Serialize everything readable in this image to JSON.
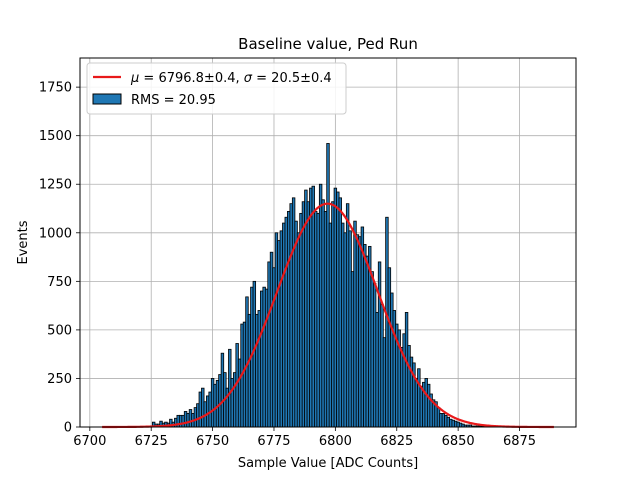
{
  "chart_data": {
    "type": "bar",
    "title": "Baseline value, Ped Run",
    "xlabel": "Sample Value [ADC Counts]",
    "ylabel": "Events",
    "xlim": [
      6696,
      6898
    ],
    "ylim": [
      0,
      1900
    ],
    "xticks": [
      6700,
      6725,
      6750,
      6775,
      6800,
      6825,
      6850,
      6875
    ],
    "yticks": [
      0,
      250,
      500,
      750,
      1000,
      1250,
      1500,
      1750
    ],
    "grid": true,
    "legend_position": "top-left",
    "colors": {
      "bars": "#1f77b4",
      "bar_edge": "#000000",
      "fit": "#e8191a"
    },
    "series": [
      {
        "name": "RMS = 20.95",
        "kind": "histogram",
        "bin_width": 1.05,
        "x": [
          6726,
          6727,
          6728,
          6729,
          6730,
          6731,
          6732,
          6733,
          6734,
          6735,
          6736,
          6737,
          6738,
          6739,
          6740,
          6741,
          6742,
          6743,
          6744,
          6745,
          6746,
          6747,
          6748,
          6749,
          6750,
          6751,
          6752,
          6753,
          6754,
          6755,
          6756,
          6757,
          6758,
          6759,
          6760,
          6761,
          6762,
          6763,
          6764,
          6765,
          6766,
          6767,
          6768,
          6769,
          6770,
          6771,
          6772,
          6773,
          6774,
          6775,
          6776,
          6777,
          6778,
          6779,
          6780,
          6781,
          6782,
          6783,
          6784,
          6785,
          6786,
          6787,
          6788,
          6789,
          6790,
          6791,
          6792,
          6793,
          6794,
          6795,
          6796,
          6797,
          6798,
          6799,
          6800,
          6801,
          6802,
          6803,
          6804,
          6805,
          6806,
          6807,
          6808,
          6809,
          6810,
          6811,
          6812,
          6813,
          6814,
          6815,
          6816,
          6817,
          6818,
          6819,
          6820,
          6821,
          6822,
          6823,
          6824,
          6825,
          6826,
          6827,
          6828,
          6829,
          6830,
          6831,
          6832,
          6833,
          6834,
          6835,
          6836,
          6837,
          6838,
          6839,
          6840,
          6841,
          6842,
          6843,
          6844,
          6845,
          6846,
          6847,
          6848,
          6849,
          6850,
          6851,
          6852,
          6853,
          6854,
          6855,
          6856,
          6857,
          6858,
          6859,
          6860,
          6861
        ],
        "values": [
          25,
          15,
          15,
          30,
          20,
          25,
          20,
          40,
          25,
          45,
          60,
          60,
          60,
          80,
          70,
          90,
          70,
          100,
          120,
          180,
          200,
          130,
          160,
          180,
          250,
          220,
          240,
          270,
          380,
          280,
          200,
          400,
          250,
          280,
          430,
          350,
          530,
          540,
          670,
          580,
          720,
          750,
          580,
          600,
          700,
          720,
          710,
          850,
          900,
          820,
          1000,
          960,
          1010,
          1050,
          1080,
          1110,
          1150,
          1180,
          1060,
          1000,
          1100,
          1160,
          1220,
          1160,
          1230,
          1240,
          1110,
          1100,
          1250,
          1170,
          1110,
          1460,
          1050,
          1160,
          1230,
          1210,
          1180,
          1050,
          1000,
          1150,
          1010,
          800,
          1060,
          990,
          980,
          1030,
          940,
          880,
          930,
          800,
          740,
          590,
          850,
          630,
          460,
          1080,
          820,
          690,
          600,
          530,
          500,
          410,
          480,
          590,
          420,
          360,
          330,
          250,
          300,
          210,
          230,
          250,
          220,
          170,
          140,
          130,
          100,
          70,
          70,
          60,
          50,
          40,
          35,
          30,
          25,
          20,
          15,
          10,
          10,
          10,
          5,
          5,
          5,
          5,
          3,
          2
        ]
      },
      {
        "name": "μ = 6796.8±0.4, σ = 20.5±0.4",
        "kind": "gaussian_fit",
        "mu": 6796.8,
        "sigma": 20.5,
        "amplitude": 1150,
        "x_range": [
          6705,
          6889
        ]
      }
    ],
    "legend": {
      "fit_label_mu": "μ",
      "fit_label_eq1": " = 6796.8±0.4, ",
      "fit_label_sigma": "σ",
      "fit_label_eq2": " = 20.5±0.4",
      "hist_label": "RMS = 20.95"
    }
  }
}
